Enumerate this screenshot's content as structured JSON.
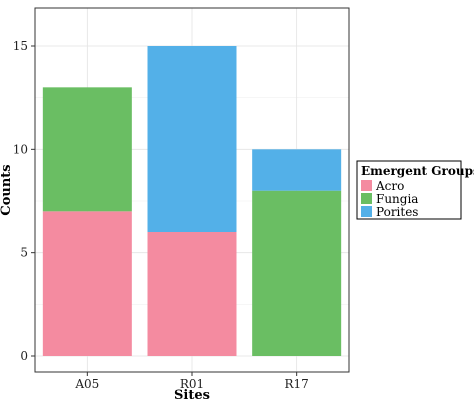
{
  "chart_data": {
    "type": "bar",
    "stacked": true,
    "categories": [
      "A05",
      "R01",
      "R17"
    ],
    "series": [
      {
        "name": "Acro",
        "color": "#F48BA0",
        "values": [
          7,
          6,
          0
        ]
      },
      {
        "name": "Fungia",
        "color": "#6ABE63",
        "values": [
          6,
          0,
          8
        ]
      },
      {
        "name": "Porites",
        "color": "#53B0E8",
        "values": [
          0,
          9,
          2
        ]
      }
    ],
    "xlabel": "Sites",
    "ylabel": "Counts",
    "ylim": [
      0,
      15.8
    ],
    "yticks": [
      0,
      5,
      10,
      15
    ],
    "grid": true,
    "legend": {
      "title": "Emergent Groups",
      "position": "right"
    }
  }
}
